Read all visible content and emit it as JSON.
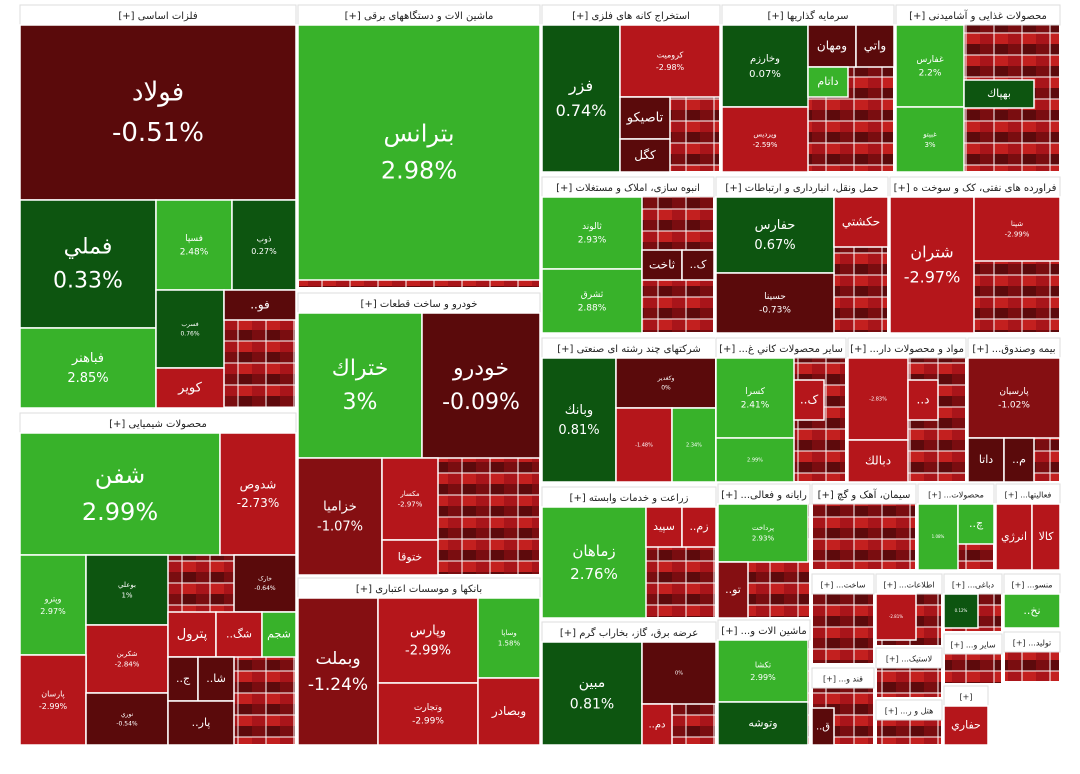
{
  "sectors": [
    {
      "title": "فلزات اساسی [+]",
      "tiles": [
        {
          "name": "فولاد",
          "change": "-0.51%"
        },
        {
          "name": "فملي",
          "change": "0.33%"
        },
        {
          "name": "فباهنر",
          "change": "2.85%"
        },
        {
          "name": "فسپا",
          "change": "2.48%"
        },
        {
          "name": "ذوب",
          "change": "0.27%"
        },
        {
          "name": "فسرب",
          "change": "0.76%"
        },
        {
          "name": "کویر"
        },
        {
          "name": "فو.."
        }
      ]
    },
    {
      "title": "محصولات شیمیایی [+]",
      "tiles": [
        {
          "name": "شفن",
          "change": "2.99%"
        },
        {
          "name": "شدوص",
          "change": "-2.73%"
        },
        {
          "name": "وپترو",
          "change": "2.97%"
        },
        {
          "name": "بوعلي",
          "change": "1%"
        },
        {
          "name": "شکربن",
          "change": "-2.84%"
        },
        {
          "name": "خارک",
          "change": "-0.64%"
        },
        {
          "name": "پترول"
        },
        {
          "name": "شگ.."
        },
        {
          "name": "شجم"
        },
        {
          "name": "پارسان",
          "change": "-2.99%"
        },
        {
          "name": "نوري",
          "change": "-0.54%"
        },
        {
          "name": "ج.."
        },
        {
          "name": "شا.."
        },
        {
          "name": "پار.."
        }
      ]
    },
    {
      "title": "ماشین الات و دستگاههای برقی [+]",
      "tiles": [
        {
          "name": "بترانس",
          "change": "2.98%"
        }
      ]
    },
    {
      "title": "خودرو و ساخت قطعات [+]",
      "tiles": [
        {
          "name": "ختراك",
          "change": "3%"
        },
        {
          "name": "خودرو",
          "change": "-0.09%"
        },
        {
          "name": "خزامیا",
          "change": "-1.07%"
        },
        {
          "name": "مکسار",
          "change": "-2.97%"
        },
        {
          "name": "ختوقا"
        }
      ]
    },
    {
      "title": "بانكها و موسسات اعتباری [+]",
      "tiles": [
        {
          "name": "وبملت",
          "change": "-1.24%"
        },
        {
          "name": "وپارس",
          "change": "-2.99%"
        },
        {
          "name": "وتجارت",
          "change": "-2.99%"
        },
        {
          "name": "وساپا",
          "change": "1.58%"
        },
        {
          "name": "وبصادر"
        }
      ]
    },
    {
      "title": "استخراج کانه های فلزی [+]",
      "tiles": [
        {
          "name": "فزر",
          "change": "0.74%"
        },
        {
          "name": "کرومیت",
          "change": "-2.98%"
        },
        {
          "name": "تاصیکو"
        },
        {
          "name": "کگل"
        }
      ]
    },
    {
      "title": "سرمایه گذاریها [+]",
      "tiles": [
        {
          "name": "وخارزم",
          "change": "0.07%"
        },
        {
          "name": "ومهان"
        },
        {
          "name": "واتي"
        },
        {
          "name": "داتام"
        },
        {
          "name": "وپردیس",
          "change": "-2.59%"
        }
      ]
    },
    {
      "title": "محصولات غذایی و آشامیدنی [+]",
      "tiles": [
        {
          "name": "غفارس",
          "change": "2.2%"
        },
        {
          "name": "غبیتو",
          "change": "3%"
        },
        {
          "name": "بهپاك"
        }
      ]
    },
    {
      "title": "انبوه سازی، املاک و مستغلات [+]",
      "tiles": [
        {
          "name": "ثالوند",
          "change": "2.93%"
        },
        {
          "name": "ثشرق",
          "change": "2.88%"
        },
        {
          "name": "ثاخت"
        },
        {
          "name": "ک.."
        }
      ]
    },
    {
      "title": "حمل ونقل، انبارداری و ارتباطات [+]",
      "tiles": [
        {
          "name": "حفارس",
          "change": "0.67%"
        },
        {
          "name": "حسینا",
          "change": "-0.73%"
        },
        {
          "name": "حکشتي"
        }
      ]
    },
    {
      "title": "فراورده های نفتی، کک و سوخت ه [+]",
      "tiles": [
        {
          "name": "شتران",
          "change": "-2.97%"
        },
        {
          "name": "شپنا",
          "change": "-2.99%"
        }
      ]
    },
    {
      "title": "شرکتهای چند رشته ای صنعتی [+]",
      "tiles": [
        {
          "name": "وبانك",
          "change": "0.81%"
        },
        {
          "name": "وكغدير",
          "change": "0%"
        },
        {
          "change": "-1.48%"
        },
        {
          "change": "2.34%"
        }
      ]
    },
    {
      "title": "سایر محصولات كاني غ... [+]",
      "tiles": [
        {
          "name": "كسرا",
          "change": "2.41%"
        },
        {
          "change": "2.99%"
        },
        {
          "name": "ک.."
        }
      ]
    },
    {
      "title": "مواد و محصولات دار... [+]",
      "tiles": [
        {
          "change": "-2.83%"
        },
        {
          "name": "د.."
        },
        {
          "name": "دبالك"
        }
      ]
    },
    {
      "title": "بیمه وصندوق... [+]",
      "tiles": [
        {
          "name": "پارسیان",
          "change": "-1.02%"
        },
        {
          "name": "داتا"
        },
        {
          "name": "م.."
        }
      ]
    },
    {
      "title": "زراعت و خدمات وابسته [+]",
      "tiles": [
        {
          "name": "زماهان",
          "change": "2.76%"
        },
        {
          "name": "سپيد"
        },
        {
          "name": "زم.."
        }
      ]
    },
    {
      "title": "عرضه برق، گاز، بخاراب گرم [+]",
      "tiles": [
        {
          "name": "مبین",
          "change": "0.81%"
        },
        {
          "change": "0%"
        },
        {
          "name": "دم.."
        }
      ]
    },
    {
      "title": "رایانه و فعالی... [+]",
      "tiles": [
        {
          "name": "پرداخت",
          "change": "2.93%"
        },
        {
          "name": "تو.."
        }
      ]
    },
    {
      "title": "سیمان، آهک و گچ [+]",
      "tiles": []
    },
    {
      "title": "محصولات... [+]",
      "tiles": [
        {
          "change": "1.08%"
        },
        {
          "name": "چ.."
        }
      ]
    },
    {
      "title": "فعالیتها... [+]",
      "tiles": [
        {
          "name": "انرژي"
        },
        {
          "name": "کالا"
        }
      ]
    },
    {
      "title": "ماشین الات و... [+]",
      "tiles": [
        {
          "name": "تکشا",
          "change": "2.99%"
        },
        {
          "name": "وتوشه"
        }
      ]
    },
    {
      "title": "ساخت... [+]",
      "tiles": []
    },
    {
      "title": "اطلاعات... [+]",
      "tiles": [
        {
          "change": "-2.81%"
        }
      ]
    },
    {
      "title": "دباغی... [+]",
      "tiles": [
        {
          "change": "0.12%"
        }
      ]
    },
    {
      "title": "منسو... [+]",
      "tiles": [
        {
          "name": "نخ.."
        }
      ]
    },
    {
      "title": "لاستیک... [+]",
      "tiles": []
    },
    {
      "title": "سایر و... [+]",
      "tiles": []
    },
    {
      "title": "تولید... [+]",
      "tiles": []
    },
    {
      "title": "قند و... [+]",
      "tiles": [
        {
          "name": "ق.."
        }
      ]
    },
    {
      "title": "هتل و ر... [+]",
      "tiles": []
    },
    {
      "title": "[+]",
      "tiles": [
        {
          "name": "حفاري"
        }
      ]
    }
  ]
}
